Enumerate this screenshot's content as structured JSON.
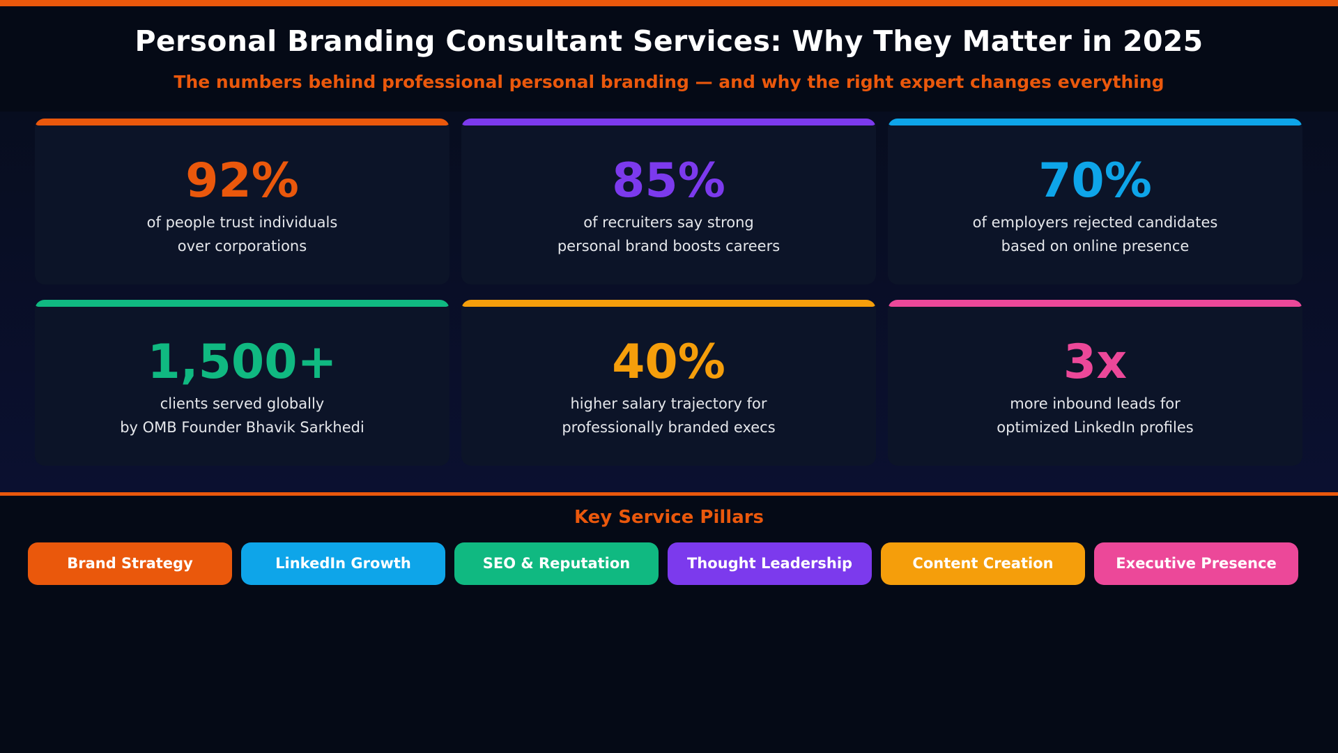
{
  "header": {
    "title": "Personal Branding Consultant Services: Why They Matter in 2025",
    "subtitle": "The numbers behind professional personal branding — and why the right expert changes everything"
  },
  "colors": {
    "orange": "#ea580c",
    "purple": "#7c3aed",
    "blue": "#0ea5e9",
    "green": "#10b981",
    "amber": "#f59e0b",
    "pink": "#ec4899"
  },
  "stats": [
    {
      "value": "92%",
      "line1": "of people trust individuals",
      "line2": "over corporations",
      "color": "#ea580c"
    },
    {
      "value": "85%",
      "line1": "of recruiters say strong",
      "line2": "personal brand boosts careers",
      "color": "#7c3aed"
    },
    {
      "value": "70%",
      "line1": "of employers rejected candidates",
      "line2": "based on online presence",
      "color": "#0ea5e9"
    },
    {
      "value": "1,500+",
      "line1": "clients served globally",
      "line2": "by OMB Founder Bhavik Sarkhedi",
      "color": "#10b981"
    },
    {
      "value": "40%",
      "line1": "higher salary trajectory for",
      "line2": "professionally branded execs",
      "color": "#f59e0b"
    },
    {
      "value": "3x",
      "line1": "more inbound leads for",
      "line2": "optimized LinkedIn profiles",
      "color": "#ec4899"
    }
  ],
  "pillars": {
    "title": "Key Service Pillars",
    "items": [
      {
        "label": "Brand Strategy",
        "color": "#ea580c"
      },
      {
        "label": "LinkedIn Growth",
        "color": "#0ea5e9"
      },
      {
        "label": "SEO & Reputation",
        "color": "#10b981"
      },
      {
        "label": "Thought Leadership",
        "color": "#7c3aed"
      },
      {
        "label": "Content Creation",
        "color": "#f59e0b"
      },
      {
        "label": "Executive Presence",
        "color": "#ec4899"
      }
    ]
  }
}
